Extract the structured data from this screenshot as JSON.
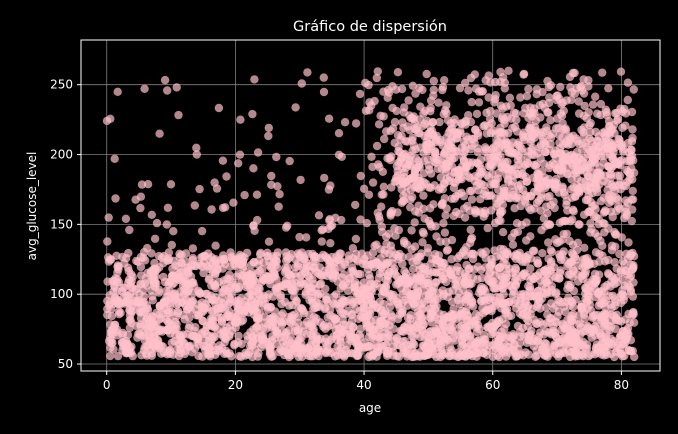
{
  "chart_data": {
    "type": "scatter",
    "title": "Gráfico de dispersión",
    "xlabel": "age",
    "ylabel": "avg_glucose_level",
    "xlim": [
      -4,
      86
    ],
    "ylim": [
      45,
      282
    ],
    "xticks": [
      0,
      20,
      40,
      60,
      80
    ],
    "yticks": [
      50,
      100,
      150,
      200,
      250
    ],
    "grid": true,
    "marker_color": "#FFC0CB",
    "background": "#000000",
    "grid_color": "#808080",
    "description_of_distribution": {
      "dense_band_y": [
        55,
        130
      ],
      "upper_cluster_y": [
        160,
        260
      ],
      "upper_cluster_x_from": 40,
      "x_range": [
        0.08,
        82
      ]
    }
  }
}
